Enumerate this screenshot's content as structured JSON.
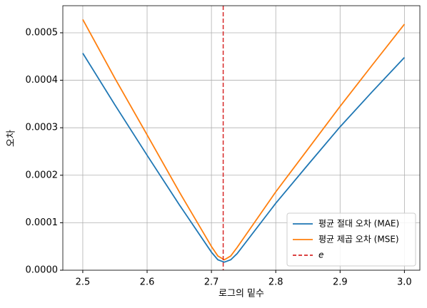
{
  "chart_data": {
    "type": "line",
    "xlabel": "로그의 밑수",
    "ylabel": "오차",
    "series": [
      {
        "name": "평균 절대 오차 (MAE)",
        "color": "#1f77b4",
        "x": [
          2.5,
          2.55,
          2.6,
          2.65,
          2.7,
          2.71,
          2.72,
          2.73,
          2.74,
          2.8,
          2.85,
          2.9,
          2.95,
          3.0
        ],
        "values": [
          0.000457,
          0.000348,
          0.000242,
          0.000138,
          3.8e-05,
          2.2e-05,
          1.7e-05,
          2.2e-05,
          3.5e-05,
          0.000141,
          0.000222,
          0.000302,
          0.000376,
          0.000448
        ]
      },
      {
        "name": "평균 제곱 오차 (MSE)",
        "color": "#ff7f0e",
        "x": [
          2.5,
          2.55,
          2.6,
          2.65,
          2.7,
          2.71,
          2.72,
          2.73,
          2.74,
          2.8,
          2.85,
          2.9,
          2.95,
          3.0
        ],
        "values": [
          0.000528,
          0.000404,
          0.000285,
          0.000165,
          5e-05,
          3e-05,
          2.2e-05,
          3e-05,
          4.8e-05,
          0.000165,
          0.000255,
          0.000345,
          0.000432,
          0.000518
        ]
      }
    ],
    "vlines": [
      {
        "name": "e",
        "x": 2.718281828,
        "color": "#d62728"
      }
    ],
    "xlim": [
      2.469,
      3.024
    ],
    "ylim": [
      0,
      0.000557
    ],
    "xticks": [
      2.5,
      2.6,
      2.7,
      2.8,
      2.9,
      {
        "value": 3.0,
        "label": "3.0"
      }
    ],
    "yticks": [
      {
        "value": 0,
        "label": "0.0000"
      },
      {
        "value": 0.0001,
        "label": "0.0001"
      },
      {
        "value": 0.0002,
        "label": "0.0002"
      },
      {
        "value": 0.0003,
        "label": "0.0003"
      },
      {
        "value": 0.0004,
        "label": "0.0004"
      },
      {
        "value": 0.0005,
        "label": "0.0005"
      }
    ],
    "grid": true,
    "legend": "lower right"
  }
}
